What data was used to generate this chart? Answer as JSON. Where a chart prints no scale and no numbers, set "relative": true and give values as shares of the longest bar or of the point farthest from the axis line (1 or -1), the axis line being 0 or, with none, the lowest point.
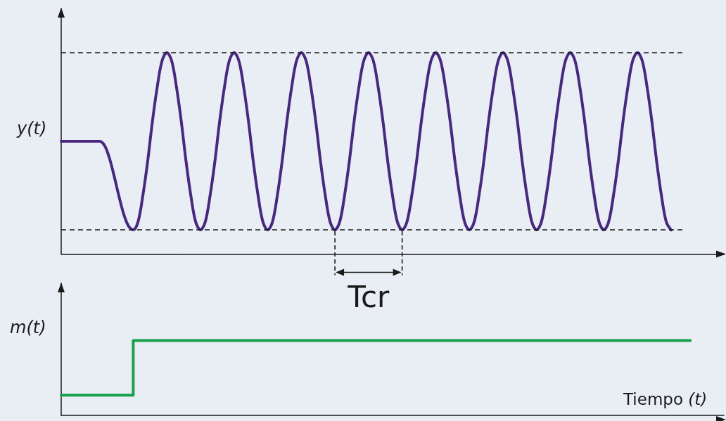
{
  "chart_data": [
    {
      "type": "line",
      "ylabel": "y(t)",
      "relative": true,
      "marker": "none",
      "categories": [
        null,
        null,
        null,
        null,
        null,
        null,
        null,
        null,
        null,
        null,
        null,
        null,
        null,
        null,
        null,
        null,
        null,
        null,
        null,
        null,
        null,
        null,
        null,
        null,
        null,
        null,
        null,
        null,
        null,
        null,
        null,
        null,
        null,
        null,
        null,
        null,
        null,
        null,
        null,
        null,
        null,
        null,
        null,
        null,
        null,
        null,
        null,
        null,
        null,
        null,
        null,
        null,
        null,
        null,
        null,
        null,
        null,
        null,
        null,
        null,
        null,
        null,
        null,
        null,
        null,
        null,
        null,
        null,
        null,
        null,
        null,
        null,
        null,
        null,
        null,
        null,
        null,
        null,
        null,
        null,
        null,
        null,
        null,
        null,
        null,
        null,
        null,
        null,
        null,
        null,
        null,
        null,
        null,
        null,
        null,
        null,
        null,
        null,
        null,
        null,
        null,
        null,
        null,
        null,
        null,
        null,
        null,
        null,
        null,
        null,
        null,
        null,
        null,
        null,
        null,
        null,
        null,
        null,
        null,
        null,
        null,
        null,
        null,
        null,
        null,
        null,
        null,
        null,
        null,
        null,
        null,
        null,
        null,
        null,
        null,
        null,
        null,
        null,
        null
      ],
      "series": [
        {
          "color": "#48297f",
          "values": [
            0.56,
            0.56,
            0.56,
            0.56,
            0.56,
            0.56,
            0.56,
            0.56,
            0.56,
            0.54,
            0.48,
            0.39,
            0.29,
            0.2,
            0.14,
            0.12,
            0.16,
            0.29,
            0.46,
            0.66,
            0.83,
            0.96,
            1,
            0.96,
            0.83,
            0.66,
            0.46,
            0.29,
            0.16,
            0.12,
            0.16,
            0.29,
            0.46,
            0.66,
            0.83,
            0.96,
            1,
            0.96,
            0.83,
            0.66,
            0.46,
            0.29,
            0.16,
            0.12,
            0.16,
            0.29,
            0.46,
            0.66,
            0.83,
            0.96,
            1,
            0.96,
            0.83,
            0.66,
            0.46,
            0.29,
            0.16,
            0.12,
            0.16,
            0.29,
            0.46,
            0.66,
            0.83,
            0.96,
            1,
            0.96,
            0.83,
            0.66,
            0.46,
            0.29,
            0.16,
            0.12,
            0.16,
            0.29,
            0.46,
            0.66,
            0.83,
            0.96,
            1,
            0.96,
            0.83,
            0.66,
            0.46,
            0.29,
            0.16,
            0.12,
            0.16,
            0.29,
            0.46,
            0.66,
            0.83,
            0.96,
            1,
            0.96,
            0.83,
            0.66,
            0.46,
            0.29,
            0.16,
            0.12,
            0.16,
            0.29,
            0.46,
            0.66,
            0.83,
            0.96,
            1,
            0.96,
            0.83,
            0.66,
            0.46,
            0.29,
            0.16,
            0.12,
            0.16,
            0.29,
            0.46,
            0.66,
            0.83,
            0.96,
            1,
            0.96,
            0.83,
            0.66,
            0.46,
            0.29,
            0.16,
            0.12,
            null,
            null,
            null,
            null,
            null,
            null,
            null,
            null,
            null,
            null,
            null
          ]
        }
      ],
      "ref_lines": [
        {
          "axis": "y",
          "value": 1,
          "line_style": "dashed",
          "color": "#1a1a1a"
        },
        {
          "axis": "y",
          "value": 0.12,
          "line_style": "dashed",
          "color": "#1a1a1a"
        }
      ],
      "annotations": [
        "Tcr"
      ]
    },
    {
      "type": "step",
      "ylabel": "m(t)",
      "xlabel": "Tiempo (t)",
      "relative": true,
      "marker": "none",
      "categories": [
        null,
        null,
        null,
        null,
        null,
        null,
        null,
        null,
        null,
        null,
        null,
        null,
        null,
        null,
        null,
        null,
        null,
        null,
        null,
        null,
        null,
        null,
        null,
        null,
        null,
        null,
        null,
        null,
        null,
        null,
        null,
        null,
        null,
        null,
        null,
        null,
        null,
        null,
        null,
        null,
        null,
        null,
        null,
        null,
        null,
        null,
        null,
        null,
        null,
        null,
        null,
        null,
        null,
        null,
        null,
        null,
        null,
        null,
        null,
        null,
        null,
        null,
        null,
        null,
        null,
        null,
        null,
        null,
        null,
        null,
        null,
        null,
        null,
        null,
        null,
        null,
        null,
        null,
        null,
        null,
        null,
        null,
        null,
        null,
        null,
        null,
        null,
        null,
        null,
        null,
        null,
        null,
        null,
        null,
        null,
        null,
        null,
        null,
        null,
        null,
        null,
        null,
        null,
        null,
        null,
        null,
        null,
        null,
        null,
        null,
        null,
        null,
        null,
        null,
        null,
        null,
        null,
        null,
        null,
        null,
        null,
        null,
        null,
        null,
        null,
        null,
        null,
        null,
        null,
        null,
        null,
        null,
        null,
        null,
        null,
        null,
        null,
        null,
        null
      ],
      "series": [
        {
          "color": "#19a04b",
          "values": [
            0.27,
            0.27,
            0.27,
            0.27,
            0.27,
            0.27,
            0.27,
            0.27,
            0.27,
            0.27,
            0.27,
            0.27,
            0.27,
            0.27,
            0.27,
            0.27,
            1,
            1,
            1,
            1,
            1,
            1,
            1,
            1,
            1,
            1,
            1,
            1,
            1,
            1,
            1,
            1,
            1,
            1,
            1,
            1,
            1,
            1,
            1,
            1,
            1,
            1,
            1,
            1,
            1,
            1,
            1,
            1,
            1,
            1,
            1,
            1,
            1,
            1,
            1,
            1,
            1,
            1,
            1,
            1,
            1,
            1,
            1,
            1,
            1,
            1,
            1,
            1,
            1,
            1,
            1,
            1,
            1,
            1,
            1,
            1,
            1,
            1,
            1,
            1,
            1,
            1,
            1,
            1,
            1,
            1,
            1,
            1,
            1,
            1,
            1,
            1,
            1,
            1,
            1,
            1,
            1,
            1,
            1,
            1,
            1,
            1,
            1,
            1,
            1,
            1,
            1,
            1,
            1,
            1,
            1,
            1,
            1,
            1,
            1,
            1,
            1,
            1,
            1,
            1,
            1,
            1,
            1,
            1,
            1,
            1,
            1,
            1,
            1,
            1,
            1,
            1,
            null,
            null,
            null,
            null,
            null,
            null,
            null
          ]
        }
      ]
    }
  ]
}
